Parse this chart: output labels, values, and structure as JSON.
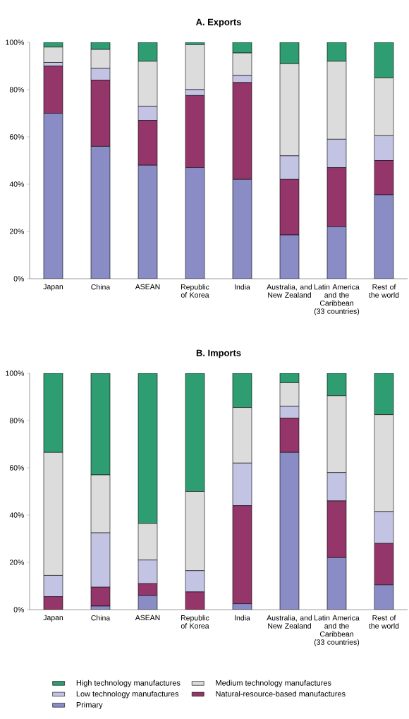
{
  "chart_data": [
    {
      "type": "bar",
      "title": "A. Exports",
      "stacked": true,
      "legend": false,
      "categories": [
        "Japan",
        "China",
        "ASEAN",
        "Republic of Korea",
        "India",
        "Australia, and New Zealand",
        "Latin America and the Caribbean (33 countries)",
        "Rest of the world"
      ],
      "ylim": [
        0,
        100
      ],
      "yticks": [
        {
          "value": 0,
          "label": "0%"
        },
        {
          "value": 20,
          "label": "20%"
        },
        {
          "value": 40,
          "label": "40%"
        },
        {
          "value": 60,
          "label": "60%"
        },
        {
          "value": 80,
          "label": "80%"
        },
        {
          "value": 100,
          "label": "100%"
        }
      ],
      "series": [
        {
          "color": "#8a8cc6",
          "values": [
            70,
            56,
            48,
            47,
            42,
            18.5,
            22,
            35.5
          ]
        },
        {
          "color": "#94366a",
          "values": [
            20,
            28,
            19,
            30.5,
            41,
            23.5,
            25,
            14.5
          ]
        },
        {
          "color": "#c3c3e3",
          "values": [
            1.5,
            5,
            6,
            2.5,
            3,
            10,
            12,
            10.5
          ]
        },
        {
          "color": "#dcdcdc",
          "values": [
            6.5,
            8,
            19,
            19,
            9.5,
            39,
            33,
            24.5
          ]
        },
        {
          "color": "#2e9e72",
          "values": [
            2,
            3,
            8,
            1,
            4.5,
            9,
            8,
            15
          ]
        }
      ]
    },
    {
      "type": "bar",
      "title": "B. Imports",
      "stacked": true,
      "legend": "bottom",
      "categories": [
        "Japan",
        "China",
        "ASEAN",
        "Republic of Korea",
        "India",
        "Australia, and New Zealand",
        "Latin America and the Caribbean (33 countries)",
        "Rest of the world"
      ],
      "ylim": [
        0,
        100
      ],
      "yticks": [
        {
          "value": 0,
          "label": "0%"
        },
        {
          "value": 20,
          "label": "20%"
        },
        {
          "value": 40,
          "label": "40%"
        },
        {
          "value": 60,
          "label": "60%"
        },
        {
          "value": 80,
          "label": "80%"
        },
        {
          "value": 100,
          "label": "100%"
        }
      ],
      "series": [
        {
          "name": "Primary",
          "color": "#8a8cc6",
          "values": [
            0,
            1.5,
            6,
            0,
            2.5,
            66.5,
            22,
            10.5
          ]
        },
        {
          "name": "Natural-resource-based manufactures",
          "color": "#94366a",
          "values": [
            5.5,
            8,
            5,
            7.5,
            41.5,
            14.5,
            24,
            17.5
          ]
        },
        {
          "name": "Low technology manufactures",
          "color": "#c3c3e3",
          "values": [
            9,
            23,
            10,
            9,
            18,
            5,
            12,
            13.5
          ]
        },
        {
          "name": "Medium technology manufactures",
          "color": "#dcdcdc",
          "values": [
            52,
            24.5,
            15.5,
            33.5,
            23.5,
            10,
            32.5,
            41
          ]
        },
        {
          "name": "High technology manufactures",
          "color": "#2e9e72",
          "values": [
            33.5,
            43,
            63.5,
            50,
            14.5,
            4,
            9.5,
            17.5
          ]
        }
      ]
    }
  ]
}
